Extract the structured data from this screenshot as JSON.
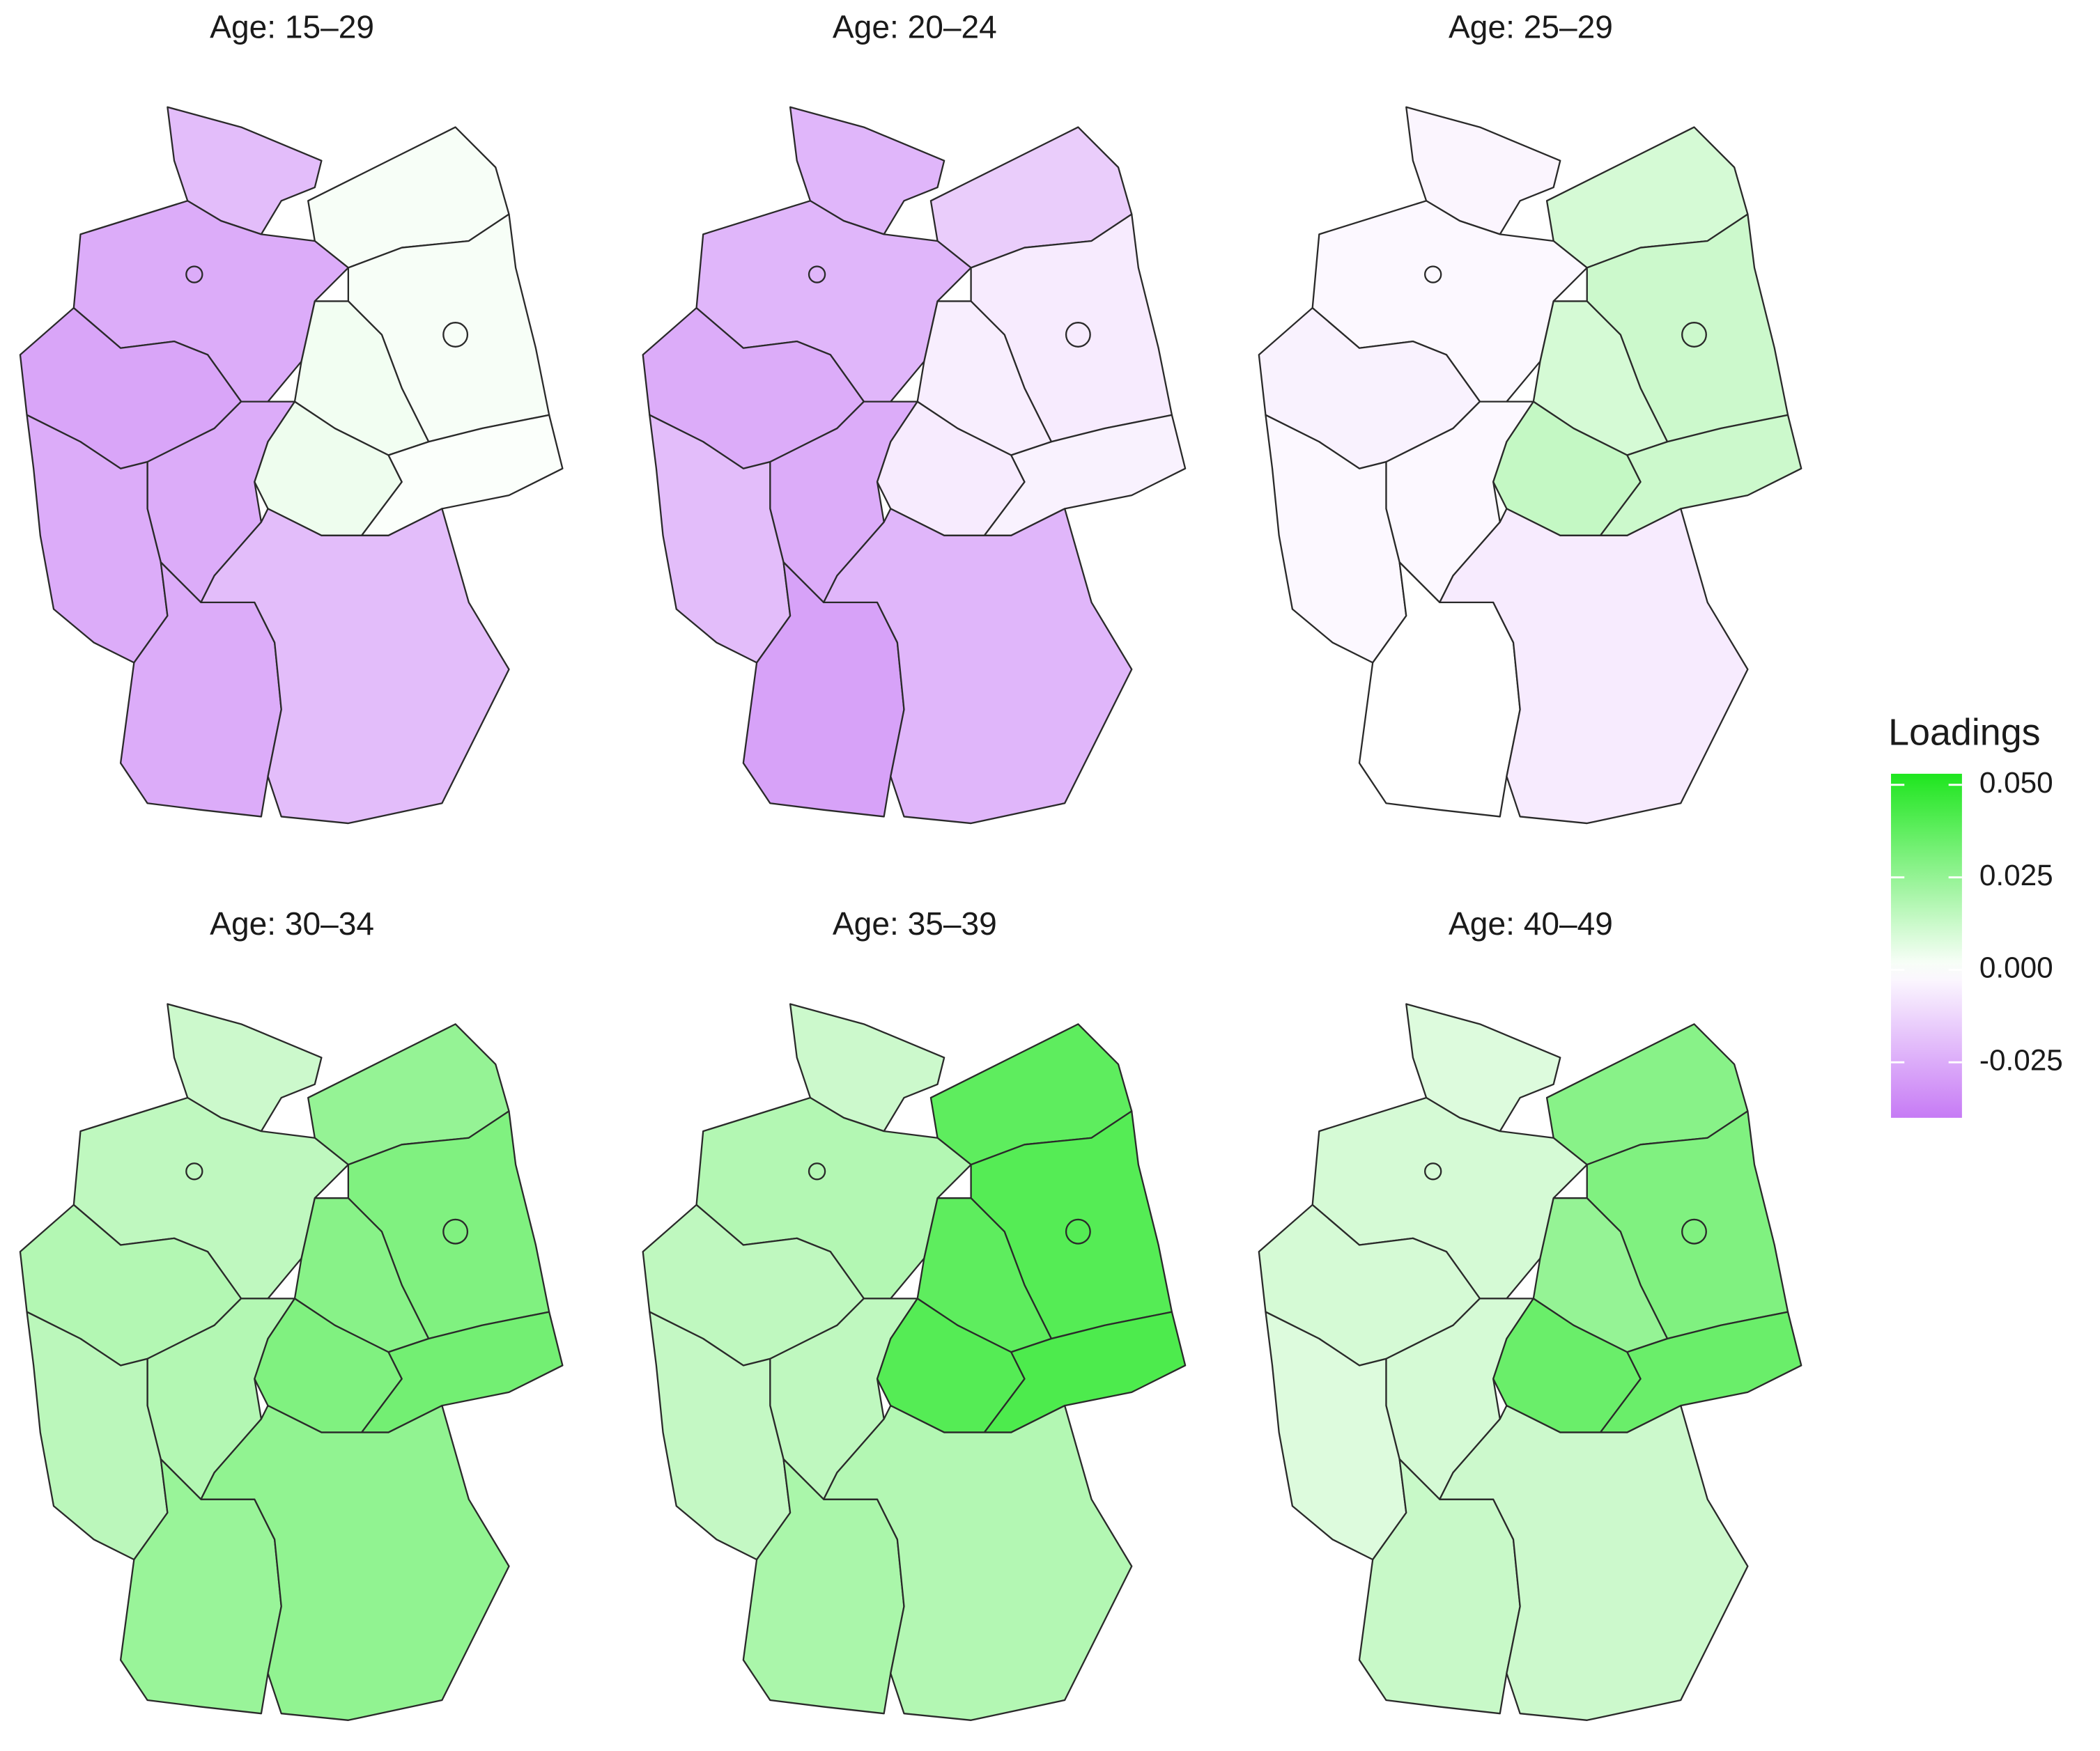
{
  "chart_data": {
    "type": "choropleth",
    "legend": {
      "title": "Loadings",
      "lim": [
        -0.04,
        0.053
      ],
      "ticks": [
        {
          "value": 0.05,
          "label": "0.050"
        },
        {
          "value": 0.025,
          "label": "0.025"
        },
        {
          "value": 0,
          "label": "0.000"
        },
        {
          "value": -0.025,
          "label": "-0.025"
        }
      ],
      "colors": {
        "low": "#b44ff2",
        "mid": "#ffffff",
        "high": "#1ee61e"
      }
    },
    "panels": [
      {
        "title": "Age: 15–29",
        "values": [
          -0.02,
          0.002,
          -0.025,
          0.002,
          0.003,
          -0.027,
          -0.025,
          0.004,
          0.001,
          -0.025,
          -0.025,
          -0.02
        ]
      },
      {
        "title": "Age: 20–24",
        "values": [
          -0.022,
          -0.015,
          -0.022,
          -0.006,
          -0.005,
          -0.025,
          -0.025,
          -0.006,
          -0.004,
          -0.02,
          -0.028,
          -0.022
        ]
      },
      {
        "title": "Age: 25–29",
        "values": [
          -0.003,
          0.01,
          -0.002,
          0.012,
          0.01,
          -0.004,
          -0.002,
          0.014,
          0.012,
          -0.002,
          0.0,
          -0.006
        ]
      },
      {
        "title": "Age: 30–34",
        "values": [
          0.012,
          0.025,
          0.015,
          0.03,
          0.028,
          0.018,
          0.018,
          0.03,
          0.033,
          0.016,
          0.024,
          0.026
        ]
      },
      {
        "title": "Age: 35–39",
        "values": [
          0.012,
          0.038,
          0.018,
          0.04,
          0.038,
          0.015,
          0.015,
          0.04,
          0.042,
          0.014,
          0.02,
          0.018
        ]
      },
      {
        "title": "Age: 40–49",
        "values": [
          0.008,
          0.028,
          0.01,
          0.03,
          0.025,
          0.01,
          0.01,
          0.035,
          0.035,
          0.008,
          0.013,
          0.012
        ]
      }
    ]
  }
}
